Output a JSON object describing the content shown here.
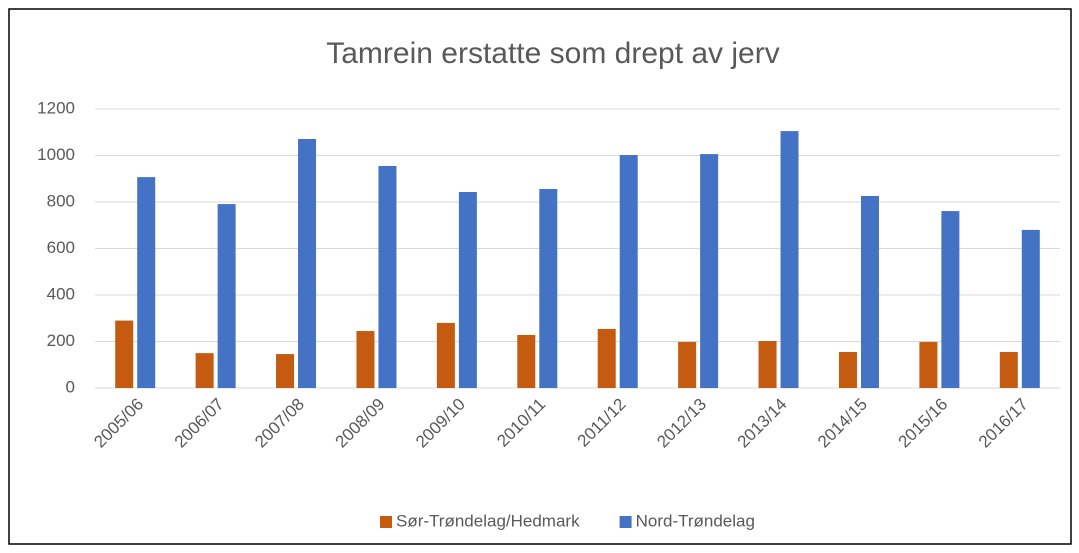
{
  "chart_data": {
    "type": "bar",
    "title": "Tamrein erstatte som drept av jerv",
    "categories": [
      "2005/06",
      "2006/07",
      "2007/08",
      "2008/09",
      "2009/10",
      "2010/11",
      "2011/12",
      "2012/13",
      "2013/14",
      "2014/15",
      "2015/16",
      "2016/17"
    ],
    "series": [
      {
        "name": "Sør-Trøndelag/Hedmark",
        "color": "#c55a11",
        "values": [
          290,
          150,
          146,
          245,
          280,
          228,
          254,
          198,
          202,
          155,
          198,
          155
        ]
      },
      {
        "name": "Nord-Trøndelag",
        "color": "#4472c4",
        "values": [
          907,
          791,
          1071,
          955,
          843,
          856,
          1002,
          1006,
          1105,
          826,
          761,
          680
        ]
      }
    ],
    "ylim": [
      0,
      1200
    ],
    "yticks": [
      0,
      200,
      400,
      600,
      800,
      1000,
      1200
    ],
    "grid": true,
    "legend": "bottom"
  }
}
